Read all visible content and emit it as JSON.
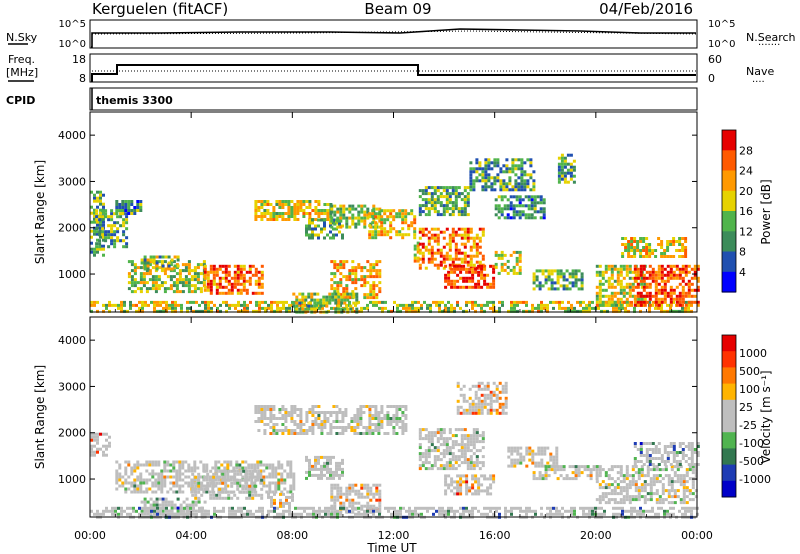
{
  "header": {
    "station": "Kerguelen (fitACF)",
    "beam": "Beam 09",
    "date": "04/Feb/2016"
  },
  "noise_panel": {
    "left_label": "N.Sky",
    "left_ticks": [
      "10^5",
      "10^0"
    ],
    "right_ticks": [
      "10^5",
      "10^0"
    ],
    "right_label": "N.Search",
    "legend_dots": "·······"
  },
  "freq_panel": {
    "left_label_1": "Freq.",
    "left_label_2": "[MHz]",
    "left_ticks": [
      "18",
      "8"
    ],
    "right_ticks": [
      "60",
      "0"
    ],
    "right_label": "Nave",
    "legend_dots": "····"
  },
  "cpid_panel": {
    "label": "CPID",
    "program": "themis 3300"
  },
  "colors": {
    "power": [
      "#0000ff",
      "#2050b0",
      "#3c8c5a",
      "#50b44b",
      "#e6d200",
      "#ff9900",
      "#ff5a00",
      "#e60000"
    ],
    "velocity": [
      "#0000c8",
      "#1e3cb4",
      "#327850",
      "#50b450",
      "#bebebe",
      "#bebebe",
      "#ffb400",
      "#ff7800",
      "#ff3200",
      "#e60000"
    ]
  },
  "chart_data": [
    {
      "type": "heatmap",
      "panel": "power",
      "ylabel": "Slant Range [km]",
      "x_ticks": [
        "00:00",
        "04:00",
        "08:00",
        "12:00",
        "16:00",
        "20:00",
        "00:00"
      ],
      "x_range_hours": [
        0,
        24
      ],
      "y_range_km": [
        180,
        4500
      ],
      "y_ticks": [
        1000,
        2000,
        3000,
        4000
      ],
      "colorbar": {
        "label": "Power [dB]",
        "tick_labels": [
          "4",
          "8",
          "12",
          "16",
          "20",
          "24",
          "28"
        ],
        "range": [
          0,
          32
        ]
      },
      "regions": [
        {
          "t": [
            0.0,
            0.5
          ],
          "r": [
            1400,
            2800
          ],
          "level": 0.35
        },
        {
          "t": [
            0.2,
            1.5
          ],
          "r": [
            1600,
            2400
          ],
          "level": 0.4
        },
        {
          "t": [
            0.0,
            23.8
          ],
          "r": [
            180,
            420
          ],
          "level": 0.55
        },
        {
          "t": [
            1.5,
            4.5
          ],
          "r": [
            600,
            1300
          ],
          "level": 0.5
        },
        {
          "t": [
            4.5,
            6.8
          ],
          "r": [
            600,
            1200
          ],
          "level": 0.8
        },
        {
          "t": [
            2.0,
            3.5
          ],
          "r": [
            1100,
            1400
          ],
          "level": 0.45
        },
        {
          "t": [
            6.5,
            9.5
          ],
          "r": [
            2200,
            2600
          ],
          "level": 0.55
        },
        {
          "t": [
            8.5,
            10.0
          ],
          "r": [
            1800,
            2200
          ],
          "level": 0.35
        },
        {
          "t": [
            9.5,
            11.5
          ],
          "r": [
            2000,
            2500
          ],
          "level": 0.5
        },
        {
          "t": [
            11.0,
            12.8
          ],
          "r": [
            1800,
            2400
          ],
          "level": 0.6
        },
        {
          "t": [
            9.5,
            11.5
          ],
          "r": [
            500,
            1300
          ],
          "level": 0.65
        },
        {
          "t": [
            12.8,
            13.0
          ],
          "r": [
            1200,
            1700
          ],
          "level": 0.6
        },
        {
          "t": [
            13.0,
            15.5
          ],
          "r": [
            1100,
            2000
          ],
          "level": 0.75
        },
        {
          "t": [
            14.0,
            16.0
          ],
          "r": [
            700,
            1200
          ],
          "level": 0.85
        },
        {
          "t": [
            13.0,
            15.0
          ],
          "r": [
            2300,
            2900
          ],
          "level": 0.4
        },
        {
          "t": [
            15.0,
            17.5
          ],
          "r": [
            2800,
            3500
          ],
          "level": 0.35
        },
        {
          "t": [
            16.0,
            18.0
          ],
          "r": [
            2200,
            2700
          ],
          "level": 0.3
        },
        {
          "t": [
            16.0,
            17.0
          ],
          "r": [
            1000,
            1500
          ],
          "level": 0.55
        },
        {
          "t": [
            17.5,
            19.5
          ],
          "r": [
            700,
            1100
          ],
          "level": 0.4
        },
        {
          "t": [
            18.5,
            19.2
          ],
          "r": [
            3000,
            3600
          ],
          "level": 0.35
        },
        {
          "t": [
            20.0,
            22.0
          ],
          "r": [
            300,
            1200
          ],
          "level": 0.55
        },
        {
          "t": [
            21.5,
            24.0
          ],
          "r": [
            300,
            1200
          ],
          "level": 0.85
        },
        {
          "t": [
            21.0,
            23.5
          ],
          "r": [
            1400,
            1800
          ],
          "level": 0.6
        },
        {
          "t": [
            8.0,
            10.5
          ],
          "r": [
            180,
            600
          ],
          "level": 0.45
        },
        {
          "t": [
            1.0,
            2.0
          ],
          "r": [
            2300,
            2600
          ],
          "level": 0.3
        }
      ]
    },
    {
      "type": "heatmap",
      "panel": "velocity",
      "ylabel": "Slant Range [km]",
      "xlabel": "Time UT",
      "x_ticks": [
        "00:00",
        "04:00",
        "08:00",
        "12:00",
        "16:00",
        "20:00",
        "00:00"
      ],
      "x_range_hours": [
        0,
        24
      ],
      "y_range_km": [
        180,
        4500
      ],
      "y_ticks": [
        1000,
        2000,
        3000,
        4000
      ],
      "colorbar": {
        "label": "Velocity [m s⁻¹]",
        "tick_labels": [
          "1000",
          "500",
          "100",
          "25",
          "-25",
          "-100",
          "-500",
          "-1000"
        ]
      },
      "regions": [
        {
          "t": [
            0.0,
            0.8
          ],
          "r": [
            1500,
            2000
          ],
          "level": 0.7
        },
        {
          "t": [
            1.0,
            8.0
          ],
          "r": [
            700,
            1400
          ],
          "level": 0.5
        },
        {
          "t": [
            2.0,
            4.5
          ],
          "r": [
            180,
            600
          ],
          "level": 0.3
        },
        {
          "t": [
            4.0,
            6.8
          ],
          "r": [
            600,
            1200
          ],
          "level": 0.5
        },
        {
          "t": [
            6.5,
            12.5
          ],
          "r": [
            2000,
            2600
          ],
          "level": 0.5
        },
        {
          "t": [
            9.5,
            11.5
          ],
          "r": [
            300,
            900
          ],
          "level": 0.65
        },
        {
          "t": [
            8.5,
            10.0
          ],
          "r": [
            1000,
            1500
          ],
          "level": 0.5
        },
        {
          "t": [
            13.0,
            15.5
          ],
          "r": [
            1200,
            2100
          ],
          "level": 0.5
        },
        {
          "t": [
            14.0,
            16.0
          ],
          "r": [
            700,
            1100
          ],
          "level": 0.7
        },
        {
          "t": [
            14.5,
            16.5
          ],
          "r": [
            2400,
            3100
          ],
          "level": 0.7
        },
        {
          "t": [
            16.5,
            18.5
          ],
          "r": [
            1300,
            1700
          ],
          "level": 0.5
        },
        {
          "t": [
            17.5,
            20.0
          ],
          "r": [
            1000,
            1300
          ],
          "level": 0.5
        },
        {
          "t": [
            20.0,
            24.0
          ],
          "r": [
            500,
            1300
          ],
          "level": 0.5
        },
        {
          "t": [
            21.5,
            24.0
          ],
          "r": [
            1300,
            1800
          ],
          "level": 0.3
        },
        {
          "t": [
            0.0,
            24.0
          ],
          "r": [
            180,
            400
          ],
          "level": 0.35
        },
        {
          "t": [
            7.0,
            8.0
          ],
          "r": [
            400,
            700
          ],
          "level": 0.65
        }
      ]
    }
  ]
}
